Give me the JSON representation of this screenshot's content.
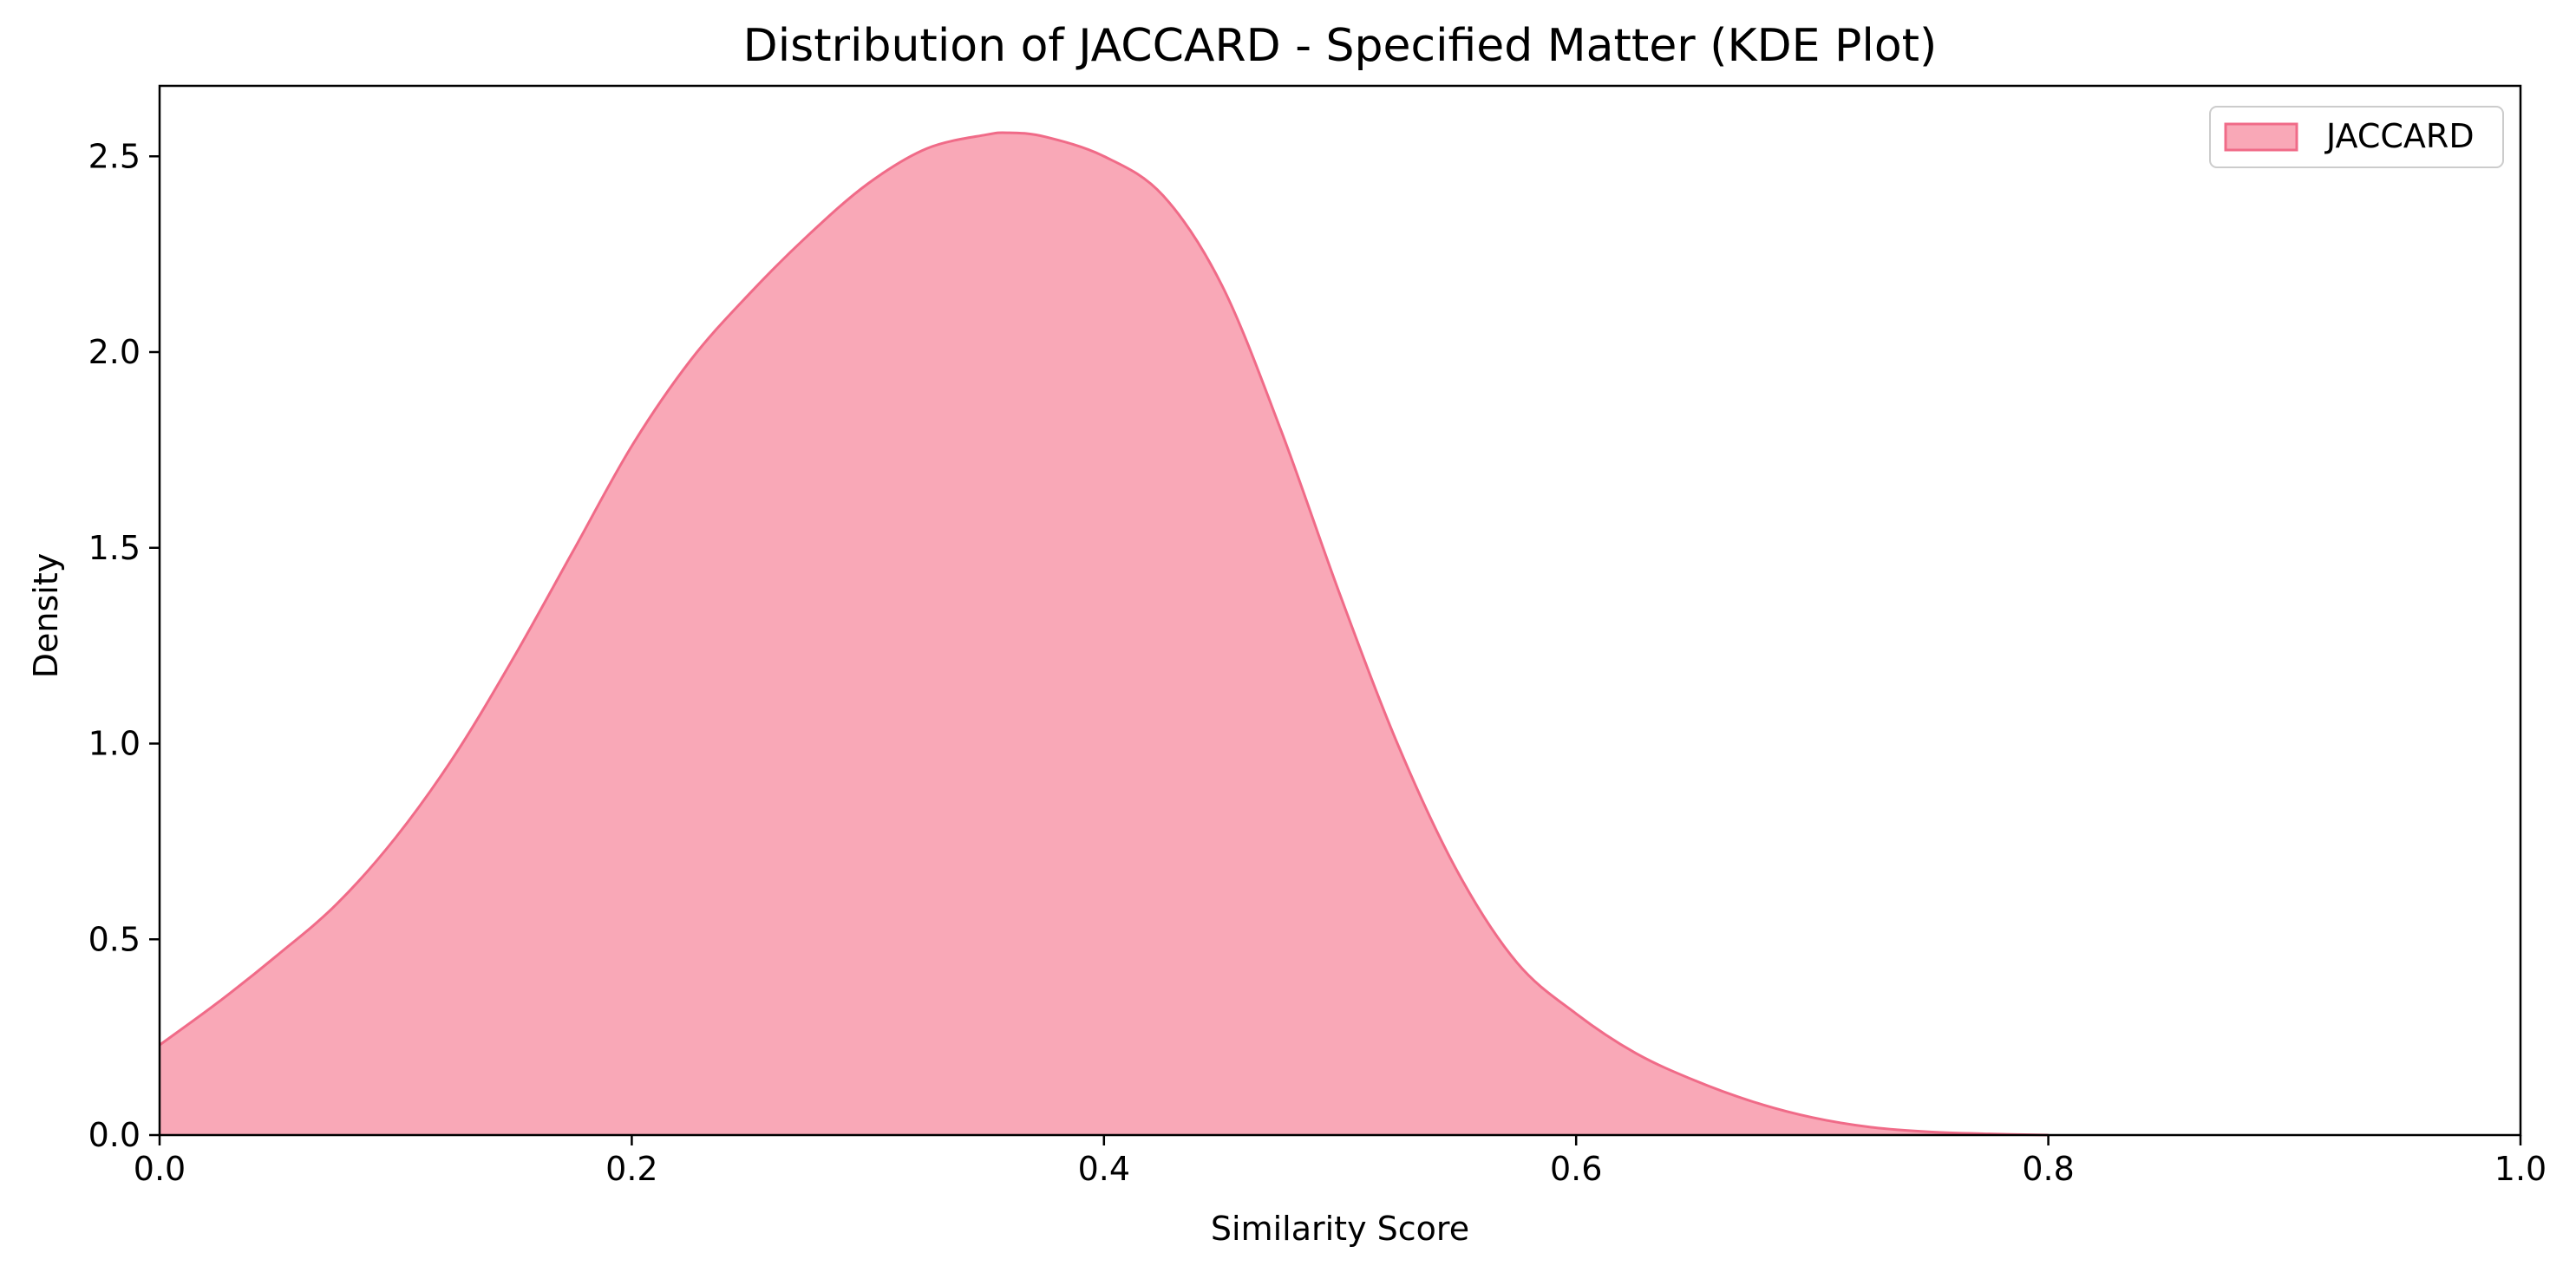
{
  "chart_data": {
    "type": "area",
    "title": "Distribution of JACCARD - Specified Matter (KDE Plot)",
    "xlabel": "Similarity Score",
    "ylabel": "Density",
    "xlim": [
      0.0,
      1.0
    ],
    "ylim": [
      0.0,
      2.68
    ],
    "xticks": [
      "0.0",
      "0.2",
      "0.4",
      "0.6",
      "0.8",
      "1.0"
    ],
    "yticks": [
      "0.0",
      "0.5",
      "1.0",
      "1.5",
      "2.0",
      "2.5"
    ],
    "grid": false,
    "legend_position": "top-right",
    "series": [
      {
        "name": "JACCARD",
        "fill_color": "#f9a8b7",
        "line_color": "#f06b88",
        "x": [
          0.0,
          0.025,
          0.05,
          0.075,
          0.1,
          0.125,
          0.15,
          0.175,
          0.2,
          0.225,
          0.25,
          0.275,
          0.3,
          0.325,
          0.35,
          0.36,
          0.375,
          0.4,
          0.425,
          0.45,
          0.475,
          0.5,
          0.525,
          0.55,
          0.575,
          0.6,
          0.625,
          0.65,
          0.675,
          0.7,
          0.725,
          0.75,
          0.775,
          0.8
        ],
        "y": [
          0.23,
          0.34,
          0.46,
          0.59,
          0.76,
          0.97,
          1.22,
          1.49,
          1.76,
          1.98,
          2.15,
          2.3,
          2.43,
          2.52,
          2.555,
          2.56,
          2.55,
          2.5,
          2.4,
          2.17,
          1.8,
          1.38,
          0.99,
          0.67,
          0.44,
          0.31,
          0.21,
          0.14,
          0.085,
          0.045,
          0.02,
          0.008,
          0.003,
          0.0
        ]
      }
    ]
  }
}
